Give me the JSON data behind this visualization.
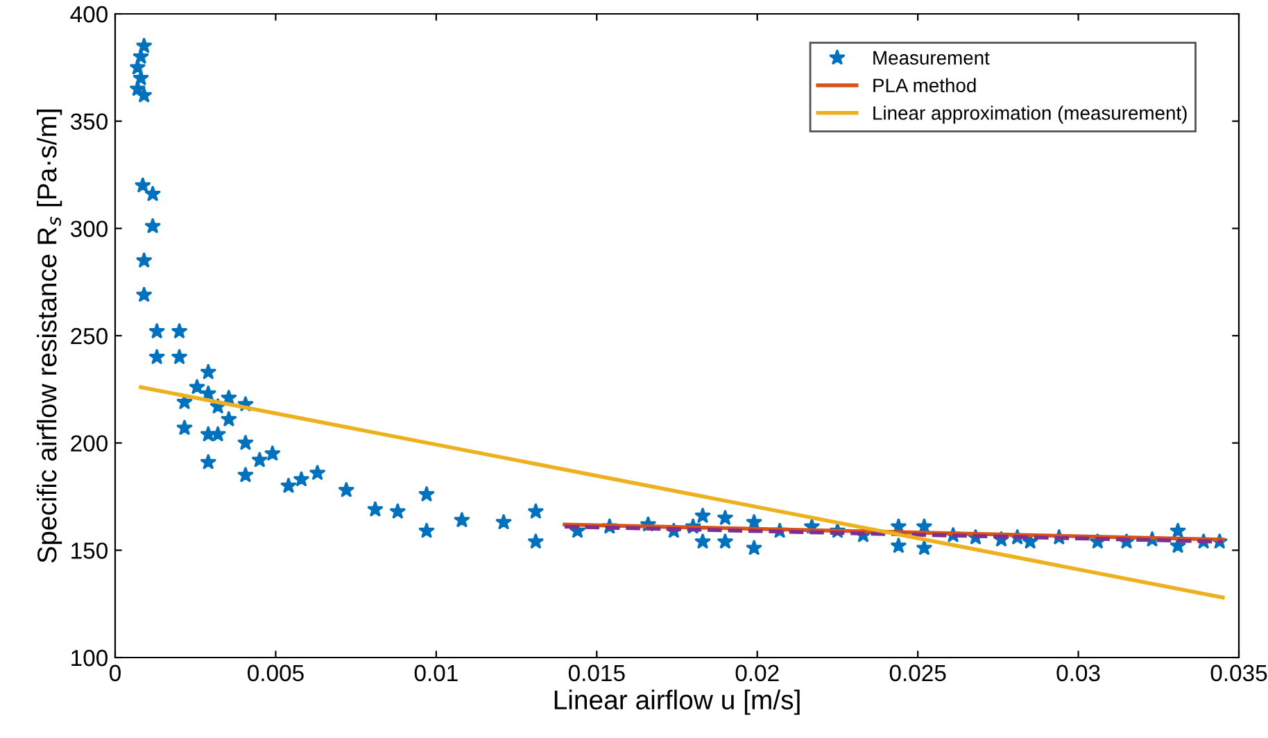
{
  "chart_data": {
    "type": "scatter",
    "xlabel": "Linear airflow u [m/s]",
    "ylabel": "Specific airflow resistance R$_{s}$ [Pa·s/m]",
    "xlim": [
      0,
      0.035
    ],
    "ylim": [
      100,
      400
    ],
    "xticks": [
      0,
      0.005,
      0.01,
      0.015,
      0.02,
      0.025,
      0.03,
      0.035
    ],
    "yticks": [
      100,
      150,
      200,
      250,
      300,
      350,
      400
    ],
    "grid": false,
    "legend": "top right",
    "series": [
      {
        "name": "Measurement",
        "marker": "star",
        "color": "#0072bd",
        "x": [
          0.0007,
          0.0007,
          0.0008,
          0.0009,
          0.0009,
          0.0008,
          0.00086,
          0.00117,
          0.00117,
          0.0009,
          0.0009,
          0.0013,
          0.0013,
          0.002,
          0.002,
          0.00216,
          0.00216,
          0.00255,
          0.0029,
          0.0029,
          0.0029,
          0.0029,
          0.0032,
          0.0032,
          0.00354,
          0.00354,
          0.00406,
          0.00406,
          0.00406,
          0.0045,
          0.0049,
          0.0054,
          0.0058,
          0.0063,
          0.0072,
          0.0081,
          0.0088,
          0.0097,
          0.0097,
          0.0108,
          0.0121,
          0.0131,
          0.0131,
          0.0144,
          0.0154,
          0.0166,
          0.0174,
          0.018,
          0.0183,
          0.0183,
          0.019,
          0.019,
          0.0199,
          0.0199,
          0.0207,
          0.0217,
          0.0225,
          0.0233,
          0.0244,
          0.0244,
          0.0252,
          0.0252,
          0.0261,
          0.0268,
          0.0276,
          0.0281,
          0.0285,
          0.0294,
          0.0306,
          0.0315,
          0.0323,
          0.0331,
          0.0331,
          0.0339,
          0.0344
        ],
        "values": [
          375,
          365,
          370,
          385,
          362,
          380,
          320,
          316,
          301,
          285,
          269,
          252,
          240,
          252,
          240,
          219,
          207,
          226,
          233,
          223,
          204,
          191,
          217,
          204,
          221,
          211,
          218,
          200,
          185,
          192,
          195,
          180,
          183,
          186,
          178,
          169,
          168,
          176,
          159,
          164,
          163,
          168,
          154,
          159,
          161,
          162,
          159,
          161,
          166,
          154,
          165,
          154,
          163,
          151,
          159,
          161,
          159,
          157,
          161,
          152,
          161,
          151,
          157,
          156,
          155,
          156,
          154,
          156,
          154,
          154,
          155,
          159,
          152,
          154,
          154
        ]
      },
      {
        "name": "PLA method",
        "type": "line",
        "color": "#d95319",
        "line_style": "solid",
        "x": [
          0.014,
          0.0345
        ],
        "values": [
          162,
          155
        ]
      },
      {
        "type": "line",
        "color": "#7e2f8e",
        "line_style": "dashed",
        "x": [
          0.014,
          0.0345
        ],
        "values": [
          161,
          154
        ]
      },
      {
        "name": "Linear approximation (measurement)",
        "type": "line",
        "color": "#edb120",
        "line_style": "solid",
        "x": [
          0.0008,
          0.0345
        ],
        "values": [
          226,
          128
        ]
      }
    ]
  }
}
